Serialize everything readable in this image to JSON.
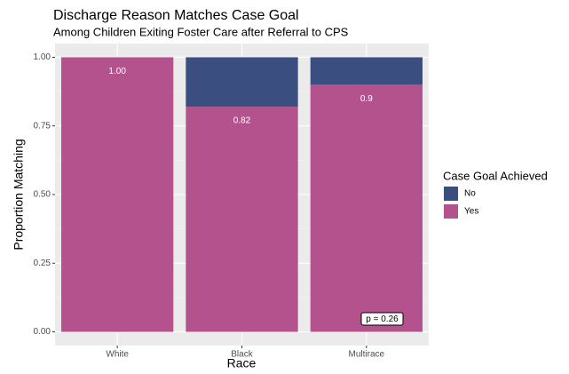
{
  "chart_data": {
    "type": "stacked_bar",
    "title": "Discharge Reason Matches Case Goal",
    "subtitle": "Among Children Exiting Foster Care after Referral to CPS",
    "x_label": "Race",
    "y_label": "Proportion Matching",
    "categories": [
      "White",
      "Black",
      "Multirace"
    ],
    "series": [
      {
        "name": "Yes",
        "color": "#b4528e",
        "values": [
          1.0,
          0.82,
          0.9
        ],
        "value_labels": [
          "1.00",
          "0.82",
          "0.9"
        ]
      },
      {
        "name": "No",
        "color": "#3a4e80",
        "values": [
          0,
          0.18,
          0.1
        ]
      }
    ],
    "legend_title": "Case Goal Achieved",
    "legend_position": "right",
    "annotation": "p = 0.26",
    "ylim": [
      -0.05,
      1.05
    ],
    "yticks": [
      {
        "value": 0,
        "label": "0.00"
      },
      {
        "value": 0.25,
        "label": "0.25"
      },
      {
        "value": 0.5,
        "label": "0.50"
      },
      {
        "value": 0.75,
        "label": "0.75"
      },
      {
        "value": 1,
        "label": "1.00"
      }
    ],
    "grid": true
  }
}
